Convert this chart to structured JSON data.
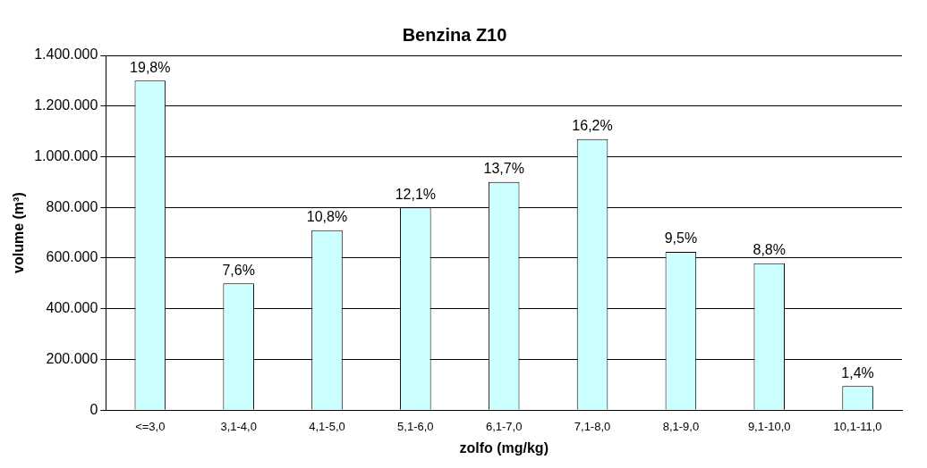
{
  "chart_data": {
    "type": "bar",
    "title": "Benzina Z10",
    "xlabel": "zolfo (mg/kg)",
    "ylabel": "volume (m³)",
    "categories": [
      "<=3,0",
      "3,1-4,0",
      "4,1-5,0",
      "5,1-6,0",
      "6,1-7,0",
      "7,1-8,0",
      "8,1-9,0",
      "9,1-10,0",
      "10,1-11,0"
    ],
    "values": [
      1300000,
      500000,
      710000,
      800000,
      900000,
      1070000,
      625000,
      580000,
      95000
    ],
    "annotations": [
      {
        "text": "19,8%",
        "x": "<=3,0",
        "y": 1300000
      },
      {
        "text": "7,6%",
        "x": "3,1-4,0",
        "y": 500000
      },
      {
        "text": "10,8%",
        "x": "4,1-5,0",
        "y": 710000
      },
      {
        "text": "12,1%",
        "x": "5,1-6,0",
        "y": 800000
      },
      {
        "text": "13,7%",
        "x": "6,1-7,0",
        "y": 900000
      },
      {
        "text": "16,2%",
        "x": "7,1-8,0",
        "y": 1070000
      },
      {
        "text": "9,5%",
        "x": "8,1-9,0",
        "y": 625000
      },
      {
        "text": "8,8%",
        "x": "9,1-10,0",
        "y": 580000
      },
      {
        "text": "1,4%",
        "x": "10,1-11,0",
        "y": 95000
      }
    ],
    "color": "#ccffff",
    "ylim": [
      0,
      1400000
    ],
    "yticks": [
      {
        "value": 0,
        "label": "0"
      },
      {
        "value": 200000,
        "label": "200.000"
      },
      {
        "value": 400000,
        "label": "400.000"
      },
      {
        "value": 600000,
        "label": "600.000"
      },
      {
        "value": 800000,
        "label": "800.000"
      },
      {
        "value": 1000000,
        "label": "1.000.000"
      },
      {
        "value": 1200000,
        "label": "1.200.000"
      },
      {
        "value": 1400000,
        "label": "1.400.000"
      }
    ],
    "grid": "y",
    "legend": false
  }
}
